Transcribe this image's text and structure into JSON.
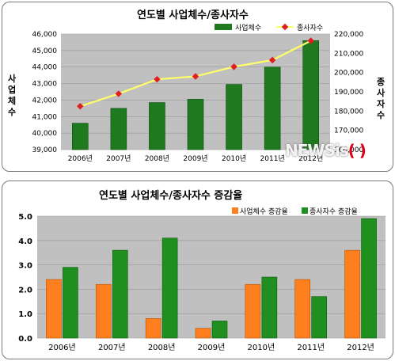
{
  "chart_data": [
    {
      "type": "bar+line",
      "title": "연도별 사업체수/종사자수",
      "categories": [
        "2006년",
        "2007년",
        "2008년",
        "2009년",
        "2010년",
        "2011년",
        "2012년"
      ],
      "ylabel_left": "사업체수",
      "ylabel_right": "종사자수",
      "ylim_left": [
        39000,
        46000
      ],
      "ylim_right": [
        160000,
        220000
      ],
      "yticks_left": [
        "39,000",
        "40,000",
        "41,000",
        "42,000",
        "43,000",
        "44,000",
        "45,000",
        "46,000"
      ],
      "yticks_right": [
        "160,000",
        "170,000",
        "180,000",
        "190,000",
        "200,000",
        "210,000",
        "220,000"
      ],
      "legend_position": "top-right",
      "series": [
        {
          "name": "사업체수",
          "kind": "bar",
          "axis": "left",
          "color": "#1f7a1f",
          "values": [
            40600,
            41500,
            41850,
            42050,
            42950,
            44000,
            45600
          ]
        },
        {
          "name": "종사자수",
          "kind": "line",
          "axis": "right",
          "color": "#ffff66",
          "marker_color": "#e02020",
          "values": [
            182500,
            189000,
            196500,
            198000,
            203000,
            206500,
            216500
          ]
        }
      ]
    },
    {
      "type": "bar",
      "title": "연도별 사업체수/종사자수 증감율",
      "categories": [
        "2006년",
        "2007년",
        "2008년",
        "2009년",
        "2010년",
        "2011년",
        "2012년"
      ],
      "ylim": [
        0,
        5.0
      ],
      "yticks": [
        "0.0",
        "1.0",
        "2.0",
        "3.0",
        "4.0",
        "5.0"
      ],
      "legend_position": "top-right",
      "series": [
        {
          "name": "사업체수 증감율",
          "color": "#ff7f1f",
          "values": [
            2.4,
            2.2,
            0.8,
            0.4,
            2.2,
            2.4,
            3.6
          ]
        },
        {
          "name": "종사자수 증감율",
          "color": "#1f8f1f",
          "values": [
            2.9,
            3.6,
            4.1,
            0.7,
            2.5,
            1.7,
            4.9
          ]
        }
      ]
    }
  ],
  "watermark": {
    "text": "NEWSis",
    "paren": "( )"
  }
}
